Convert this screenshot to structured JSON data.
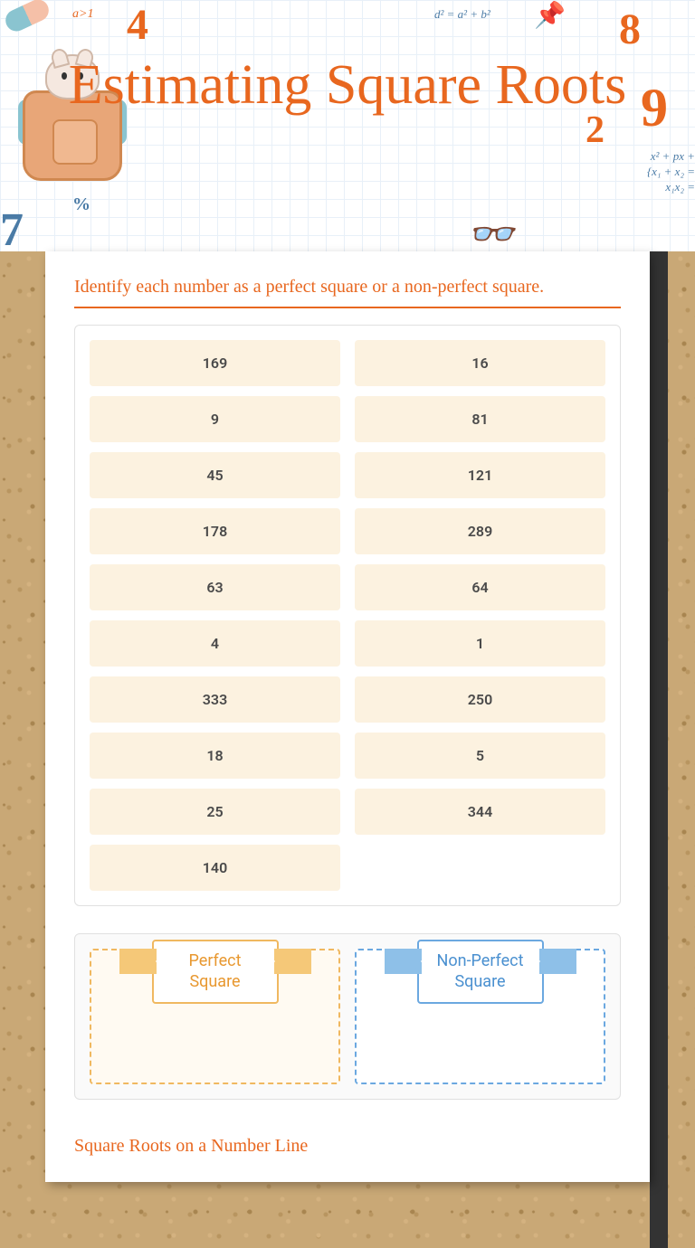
{
  "header": {
    "title": "Estimating Square Roots",
    "doodles": {
      "ineq": "a>1",
      "four": "4",
      "pythag": "d² = a² + b²",
      "pin": "📌",
      "eight": "8",
      "nine": "9",
      "two": "2",
      "quad": "x² + px +\n{x₁ + x₂ =\nx₁x₂ =",
      "percent": "%",
      "seven": "7",
      "glasses": "👓"
    }
  },
  "instruction": "Identify each number as a perfect square or a non-perfect square.",
  "tiles": [
    "169",
    "16",
    "9",
    "81",
    "45",
    "121",
    "178",
    "289",
    "63",
    "64",
    "4",
    "1",
    "333",
    "250",
    "18",
    "5",
    "25",
    "344",
    "140"
  ],
  "zones": {
    "perfect": "Perfect Square",
    "nonperfect": "Non-Perfect Square"
  },
  "section2": "Square Roots on a Number Line",
  "colors": {
    "accent": "#e8671f",
    "tile_bg": "#fcf2e0",
    "zone1_border": "#f0b860",
    "zone2_border": "#6ba8e0"
  }
}
